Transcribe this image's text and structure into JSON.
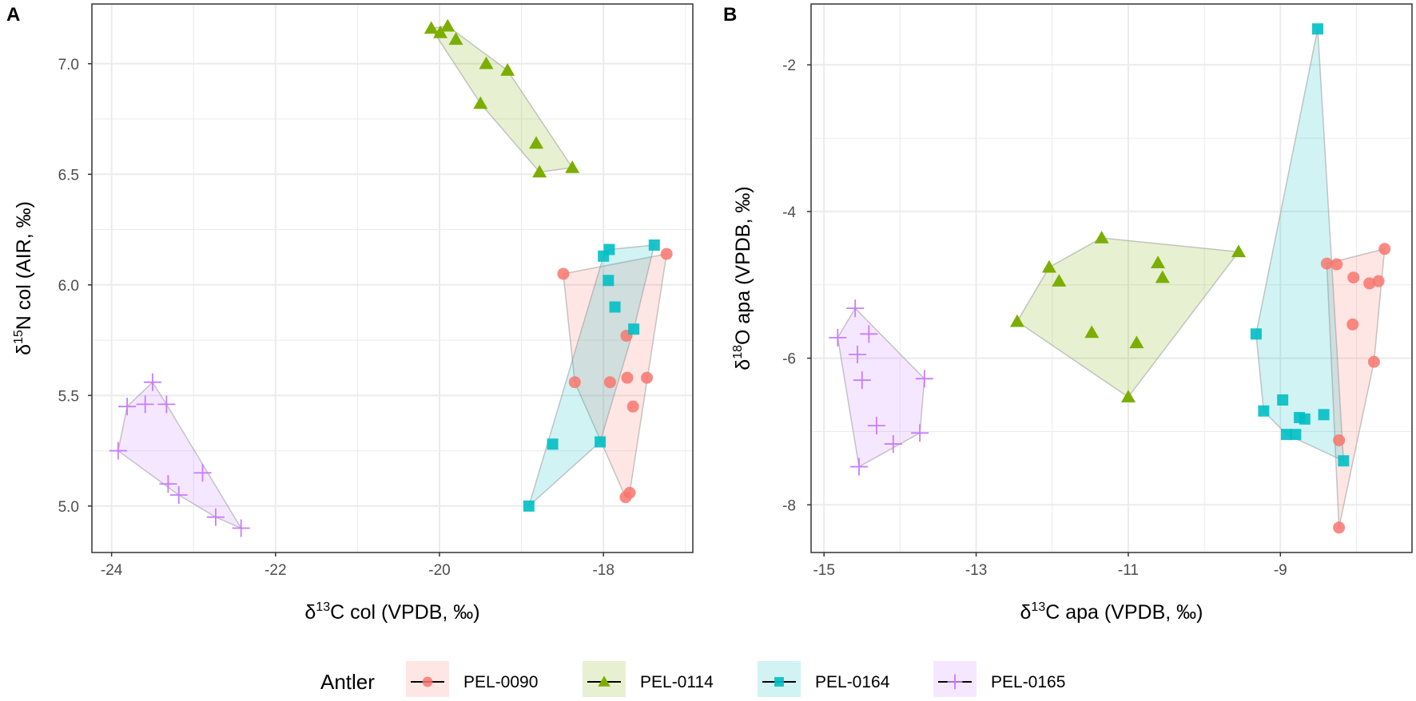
{
  "colors": {
    "PEL-0090": "#F8766D",
    "PEL-0114": "#7CAE00",
    "PEL-0164": "#00BFC4",
    "PEL-0165": "#C77CFF"
  },
  "legend": {
    "title": "Antler",
    "position": "bottom",
    "items": [
      {
        "label": "PEL-0090",
        "shape": "circle"
      },
      {
        "label": "PEL-0114",
        "shape": "triangle"
      },
      {
        "label": "PEL-0164",
        "shape": "square"
      },
      {
        "label": "PEL-0165",
        "shape": "plus"
      }
    ]
  },
  "chart_data": [
    {
      "type": "scatter",
      "panel_label": "A",
      "xlabel_pre": "δ",
      "xlabel_sup": "13",
      "xlabel_post": "C col (VPDB, ‰)",
      "ylabel_pre": "δ",
      "ylabel_sup": "15",
      "ylabel_post": "N col (AIR, ‰)",
      "xlim": [
        -24.24,
        -16.91
      ],
      "ylim": [
        4.79,
        7.27
      ],
      "xticks": [
        -24,
        -22,
        -20,
        -18
      ],
      "xtick_labels": [
        "-24",
        "-22",
        "-20",
        "-18"
      ],
      "yticks": [
        5.0,
        5.5,
        6.0,
        6.5,
        7.0
      ],
      "ytick_labels": [
        "5.0",
        "5.5",
        "6.0",
        "6.5",
        "7.0"
      ],
      "xminor": [
        -23,
        -21,
        -19,
        -17
      ],
      "yminor": [
        5.25,
        5.75,
        6.25,
        6.75
      ],
      "grid": true,
      "hulls": true,
      "series": [
        {
          "name": "PEL-0090",
          "x": [
            -18.49,
            -17.23,
            -17.72,
            -18.35,
            -17.92,
            -17.71,
            -17.47,
            -17.64,
            -17.68,
            -17.73
          ],
          "y": [
            6.05,
            6.14,
            5.77,
            5.56,
            5.56,
            5.58,
            5.58,
            5.45,
            5.06,
            5.04
          ]
        },
        {
          "name": "PEL-0114",
          "x": [
            -20.1,
            -19.99,
            -19.9,
            -19.8,
            -19.43,
            -19.17,
            -19.5,
            -18.82,
            -18.78,
            -18.38
          ],
          "y": [
            7.16,
            7.14,
            7.17,
            7.11,
            7.0,
            6.97,
            6.82,
            6.64,
            6.51,
            6.53
          ]
        },
        {
          "name": "PEL-0164",
          "x": [
            -18.0,
            -17.93,
            -17.38,
            -17.94,
            -17.86,
            -17.63,
            -18.62,
            -18.04,
            -18.91
          ],
          "y": [
            6.13,
            6.16,
            6.18,
            6.02,
            5.9,
            5.8,
            5.28,
            5.29,
            5.0
          ]
        },
        {
          "name": "PEL-0165",
          "x": [
            -23.5,
            -23.81,
            -23.59,
            -23.33,
            -23.92,
            -22.89,
            -23.31,
            -23.18,
            -22.73,
            -22.42
          ],
          "y": [
            5.56,
            5.45,
            5.46,
            5.46,
            5.25,
            5.15,
            5.1,
            5.05,
            4.95,
            4.9
          ]
        }
      ]
    },
    {
      "type": "scatter",
      "panel_label": "B",
      "xlabel_pre": "δ",
      "xlabel_sup": "13",
      "xlabel_post": "C apa (VPDB, ‰)",
      "ylabel_pre": "δ",
      "ylabel_sup": "18",
      "ylabel_post": "O apa (VPDB, ‰)",
      "xlim": [
        -15.17,
        -7.27
      ],
      "ylim": [
        -8.65,
        -1.17
      ],
      "xticks": [
        -15,
        -13,
        -11,
        -9
      ],
      "xtick_labels": [
        "-15",
        "-13",
        "-11",
        "-9"
      ],
      "yticks": [
        -8,
        -6,
        -4,
        -2
      ],
      "ytick_labels": [
        "-8",
        "-6",
        "-4",
        "-2"
      ],
      "xminor": [
        -14,
        -12,
        -10,
        -8
      ],
      "yminor": [
        -7,
        -5,
        -3
      ],
      "grid": true,
      "hulls": true,
      "series": [
        {
          "name": "PEL-0090",
          "x": [
            -8.39,
            -8.26,
            -7.63,
            -8.04,
            -7.83,
            -7.71,
            -8.05,
            -7.77,
            -8.23,
            -8.23
          ],
          "y": [
            -4.71,
            -4.72,
            -4.51,
            -4.9,
            -4.98,
            -4.95,
            -5.54,
            -6.05,
            -7.12,
            -8.31
          ]
        },
        {
          "name": "PEL-0114",
          "x": [
            -11.35,
            -9.55,
            -12.04,
            -10.61,
            -10.55,
            -11.91,
            -12.46,
            -11.48,
            -10.89,
            -11.0
          ],
          "y": [
            -4.36,
            -4.55,
            -4.76,
            -4.7,
            -4.9,
            -4.95,
            -5.5,
            -5.65,
            -5.79,
            -6.53
          ]
        },
        {
          "name": "PEL-0164",
          "x": [
            -8.51,
            -9.32,
            -8.97,
            -9.22,
            -8.75,
            -8.68,
            -8.43,
            -8.92,
            -8.8,
            -8.17
          ],
          "y": [
            -1.51,
            -5.67,
            -6.57,
            -6.72,
            -6.81,
            -6.83,
            -6.77,
            -7.04,
            -7.04,
            -7.4
          ]
        },
        {
          "name": "PEL-0165",
          "x": [
            -14.59,
            -14.82,
            -14.41,
            -14.56,
            -14.5,
            -13.68,
            -14.31,
            -13.74,
            -14.09,
            -14.54
          ],
          "y": [
            -5.32,
            -5.72,
            -5.67,
            -5.95,
            -6.3,
            -6.28,
            -6.92,
            -7.02,
            -7.17,
            -7.48
          ]
        }
      ]
    }
  ]
}
